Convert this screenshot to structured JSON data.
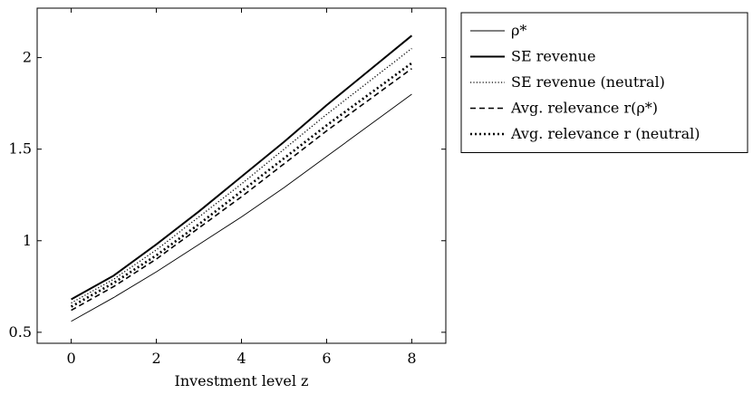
{
  "chart_data": {
    "type": "line",
    "title": "",
    "xlabel": "Investment level z",
    "ylabel": "",
    "xlim": [
      -0.8,
      8.8
    ],
    "ylim": [
      0.44,
      2.27
    ],
    "xticks": [
      0,
      2,
      4,
      6,
      8
    ],
    "yticks": [
      0.5,
      1,
      1.5,
      2
    ],
    "xtick_labels": [
      "0",
      "2",
      "4",
      "6",
      "8"
    ],
    "ytick_labels": [
      "0.5",
      "1",
      "1.5",
      "2"
    ],
    "grid": false,
    "legend_position": "outside-right-top",
    "x": [
      0,
      1,
      2,
      3,
      4,
      5,
      6,
      7,
      8
    ],
    "series": [
      {
        "name": "ρ*",
        "style": "thin-solid",
        "values": [
          0.56,
          0.69,
          0.83,
          0.98,
          1.13,
          1.29,
          1.46,
          1.63,
          1.8
        ]
      },
      {
        "name": "SE revenue",
        "style": "thick-solid",
        "values": [
          0.68,
          0.81,
          0.98,
          1.16,
          1.35,
          1.54,
          1.74,
          1.93,
          2.12
        ]
      },
      {
        "name": "SE revenue (neutral)",
        "style": "dotted",
        "values": [
          0.66,
          0.79,
          0.95,
          1.13,
          1.31,
          1.5,
          1.69,
          1.87,
          2.05
        ]
      },
      {
        "name": "Avg. relevance r(ρ*)",
        "style": "dashed",
        "values": [
          0.62,
          0.75,
          0.9,
          1.07,
          1.24,
          1.42,
          1.6,
          1.77,
          1.94
        ]
      },
      {
        "name": "Avg. relevance r (neutral)",
        "style": "thick-dotted",
        "values": [
          0.64,
          0.77,
          0.92,
          1.09,
          1.27,
          1.45,
          1.63,
          1.8,
          1.97
        ]
      }
    ]
  }
}
